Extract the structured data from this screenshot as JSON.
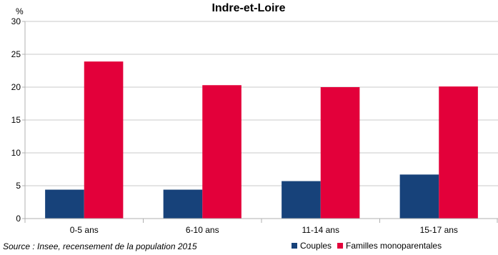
{
  "chart_data": {
    "type": "bar",
    "title": "Indre-et-Loire",
    "ylabel": "%",
    "xlabel": "",
    "categories": [
      "0-5 ans",
      "6-10 ans",
      "11-14 ans",
      "15-17 ans"
    ],
    "series": [
      {
        "name": "Couples",
        "values": [
          4.4,
          4.4,
          5.7,
          6.7
        ],
        "color": "#17427a"
      },
      {
        "name": "Familles monoparentales",
        "values": [
          23.9,
          20.3,
          20.0,
          20.1
        ],
        "color": "#e3003a"
      }
    ],
    "ylim": [
      0,
      30
    ],
    "yticks": [
      0,
      5,
      10,
      15,
      20,
      25,
      30
    ],
    "grid": true,
    "legend_position": "bottom-right"
  },
  "source_note": "Source : Insee, recensement de la population 2015",
  "colors": {
    "gridline": "#c8c8c8",
    "axis": "#b0b0b0",
    "text": "#000000"
  }
}
